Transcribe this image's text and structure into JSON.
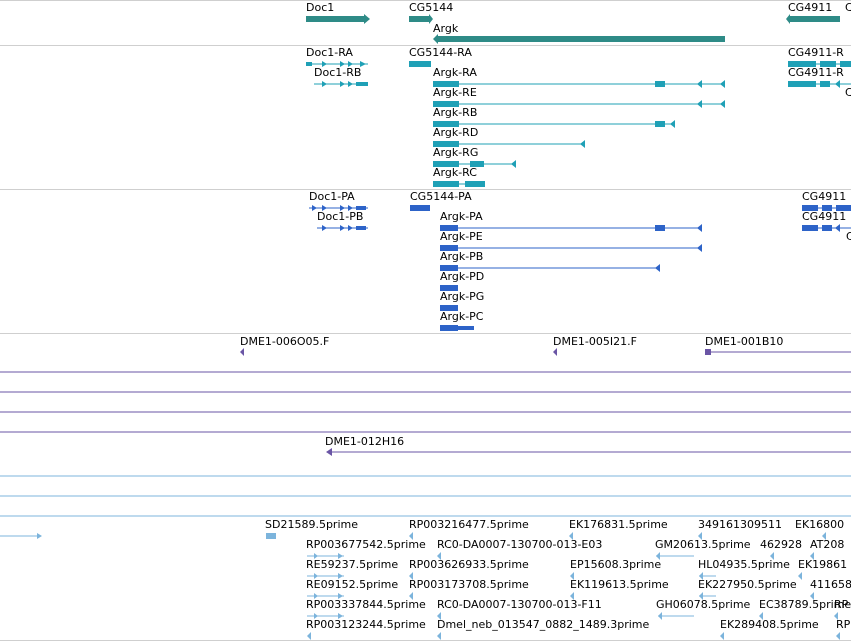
{
  "colors": {
    "gene": "#2e8b87",
    "transcript": "#1fa0b6",
    "protein": "#2d63c8",
    "clone": "#6a55a5",
    "est": "#7cb4dc",
    "track_separator": "#cfcfcf"
  },
  "tracks": {
    "genes": [
      "Doc1",
      "CG5144",
      "Argk",
      "CG4911",
      "C"
    ],
    "transcripts": [
      "Doc1-RA",
      "Doc1-RB",
      "CG5144-RA",
      "Argk-RA",
      "Argk-RE",
      "Argk-RB",
      "Argk-RD",
      "Argk-RG",
      "Argk-RC",
      "CG4911-R",
      "CG4911-R",
      "C"
    ],
    "proteins": [
      "Doc1-PA",
      "Doc1-PB",
      "CG5144-PA",
      "Argk-PA",
      "Argk-PE",
      "Argk-PB",
      "Argk-PD",
      "Argk-PG",
      "Argk-PC",
      "CG4911",
      "CG4911",
      "C"
    ],
    "clones": [
      "DME1-006O05.F",
      "DME1-005I21.F",
      "DME1-001B10",
      "DME1-012H16"
    ],
    "ests": [
      "SD21589.5prime",
      "RP003216477.5prime",
      "EK176831.5prime",
      "349161309511",
      "EK16800",
      "RP003677542.5prime",
      "RC0-DA0007-130700-013-E03",
      "GM20613.5prime",
      "462928",
      "AT208",
      "RE59237.5prime",
      "RP003626933.5prime",
      "EP15608.3prime",
      "HL04935.5prime",
      "EK19861",
      "RE09152.5prime",
      "RP003173708.5prime",
      "EK119613.5prime",
      "EK227950.5prime",
      "411658",
      "RP003337844.5prime",
      "RC0-DA0007-130700-013-F11",
      "GH06078.5prime",
      "EC38789.5prime",
      "RP",
      "RP003123244.5prime",
      "Dmel_neb_013547_0882_1489.3prime",
      "EK289408.5prime",
      "RP"
    ]
  }
}
